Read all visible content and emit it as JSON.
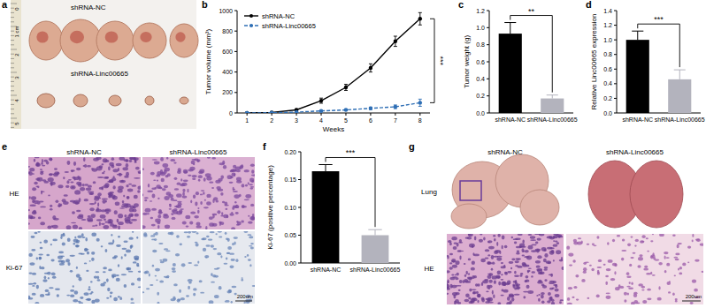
{
  "chart_data": [
    {
      "type": "line",
      "panel_label": "b",
      "x_label": "Weeks",
      "y_label": "Tumor volume (mm³)",
      "x": [
        1,
        2,
        3,
        4,
        5,
        6,
        7,
        8
      ],
      "xlim": [
        0.6,
        8.4
      ],
      "xticks": [
        1,
        2,
        3,
        4,
        5,
        6,
        7,
        8
      ],
      "ylim": [
        0,
        1000
      ],
      "yticks": [
        0,
        200,
        400,
        600,
        800,
        1000
      ],
      "legend": "upper left",
      "annotation": "***",
      "series": [
        {
          "name": "shRNA-NC",
          "color": "#000000",
          "line_style": "solid",
          "marker": "circle",
          "values": [
            0,
            5,
            30,
            120,
            250,
            440,
            700,
            920
          ],
          "errors": [
            0,
            3,
            10,
            25,
            30,
            40,
            50,
            60
          ]
        },
        {
          "name": "shRNA-Linc00665",
          "color": "#2f6fb5",
          "line_style": "dashed",
          "marker": "circle",
          "values": [
            0,
            2,
            8,
            20,
            30,
            45,
            60,
            100
          ],
          "errors": [
            0,
            2,
            4,
            6,
            8,
            12,
            18,
            35
          ]
        }
      ]
    },
    {
      "type": "bar",
      "panel_label": "c",
      "y_label": "Tumor weight (g)",
      "categories": [
        "shRNA-NC",
        "shRNA-Linc00665"
      ],
      "values": [
        0.93,
        0.17
      ],
      "errors": [
        0.13,
        0.04
      ],
      "colors": [
        "#000000",
        "#b3b3bd"
      ],
      "ylim": [
        0,
        1.2
      ],
      "yticks": [
        {
          "value": 0,
          "label": "0.0"
        },
        0.2,
        0.4,
        0.6,
        0.8,
        {
          "value": 1,
          "label": "1.0"
        },
        1.2
      ],
      "annotation": "**"
    },
    {
      "type": "bar",
      "panel_label": "d",
      "y_label": "Relative Linc00665 expression",
      "categories": [
        "shRNA-NC",
        "shRNA-Linc00665"
      ],
      "values": [
        1.0,
        0.46
      ],
      "errors": [
        0.12,
        0.13
      ],
      "colors": [
        "#000000",
        "#b3b3bd"
      ],
      "ylim": [
        0,
        1.4
      ],
      "yticks": [
        {
          "value": 0,
          "label": "0.0"
        },
        0.2,
        0.4,
        0.6,
        0.8,
        {
          "value": 1,
          "label": "1.0"
        },
        1.2,
        1.4
      ],
      "annotation": "***"
    },
    {
      "type": "bar",
      "panel_label": "f",
      "y_label": "Ki-67 (positive percentage)",
      "categories": [
        "shRNA-NC",
        "shRNA-Linc00665"
      ],
      "values": [
        0.165,
        0.05
      ],
      "errors": [
        0.012,
        0.01
      ],
      "colors": [
        "#000000",
        "#b3b3bd"
      ],
      "ylim": [
        0,
        0.2
      ],
      "yticks": [
        {
          "value": 0,
          "label": "0.00"
        },
        0.05,
        {
          "value": 0.1,
          "label": "0.10"
        },
        0.15,
        {
          "value": 0.2,
          "label": "0.20"
        }
      ],
      "annotation": "***"
    }
  ],
  "images": [
    {
      "panel_label": "a",
      "rows": [
        "shRNA-NC",
        "shRNA-Linc00665"
      ],
      "ruler": [
        "0",
        "1 cm",
        "2",
        "3",
        "4",
        "5"
      ]
    },
    {
      "panel_label": "e",
      "columns": [
        "shRNA-NC",
        "shRNA-Linc00665"
      ],
      "rows": [
        "HE",
        "Ki-67"
      ],
      "scale_bar": "200um"
    },
    {
      "panel_label": "g",
      "columns": [
        "shRNA-NC",
        "shRNA-Linc00665"
      ],
      "rows": [
        "Lung",
        "HE"
      ],
      "scale_bar": "200um"
    }
  ]
}
